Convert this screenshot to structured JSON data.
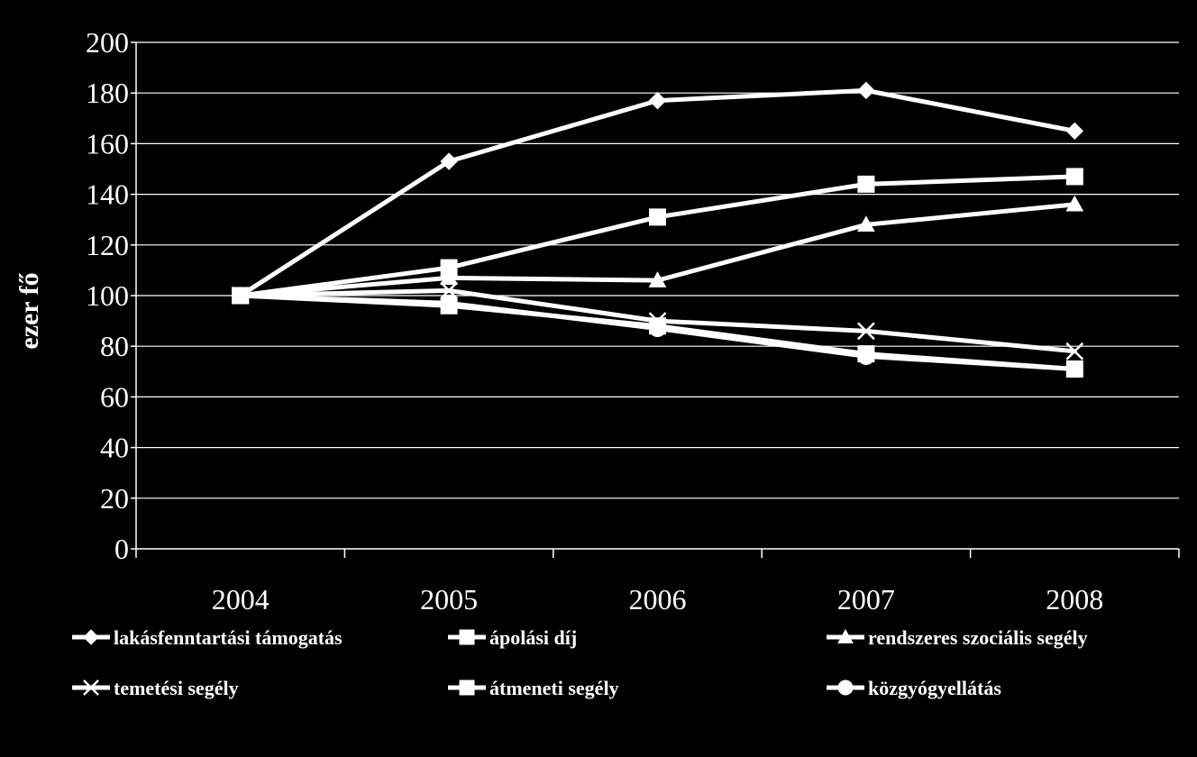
{
  "chart_data": {
    "type": "line",
    "title": "",
    "xlabel": "",
    "ylabel": "ezer fő",
    "categories": [
      "2004",
      "2005",
      "2006",
      "2007",
      "2008"
    ],
    "ylim": [
      0,
      200
    ],
    "yticks": [
      0,
      20,
      40,
      60,
      80,
      100,
      120,
      140,
      160,
      180,
      200
    ],
    "grid": "horizontal",
    "legend_position": "bottom",
    "colors": {
      "background": "#000000",
      "foreground": "#ffffff"
    },
    "series": [
      {
        "name": "lakásfenntartási támogatás",
        "marker": "diamond",
        "values": [
          100,
          153,
          177,
          181,
          165
        ]
      },
      {
        "name": "ápolási díj",
        "marker": "square",
        "values": [
          100,
          111,
          131,
          144,
          147
        ]
      },
      {
        "name": "rendszeres szociális segély",
        "marker": "triangle",
        "values": [
          100,
          107,
          106,
          128,
          136
        ]
      },
      {
        "name": "temetési segély",
        "marker": "x",
        "values": [
          100,
          102,
          90,
          86,
          78
        ]
      },
      {
        "name": "átmeneti segély",
        "marker": "square",
        "values": [
          100,
          96,
          88,
          77,
          71
        ]
      },
      {
        "name": "közgyógyellátás",
        "marker": "circle",
        "values": [
          100,
          97,
          87,
          76,
          71
        ]
      }
    ]
  }
}
